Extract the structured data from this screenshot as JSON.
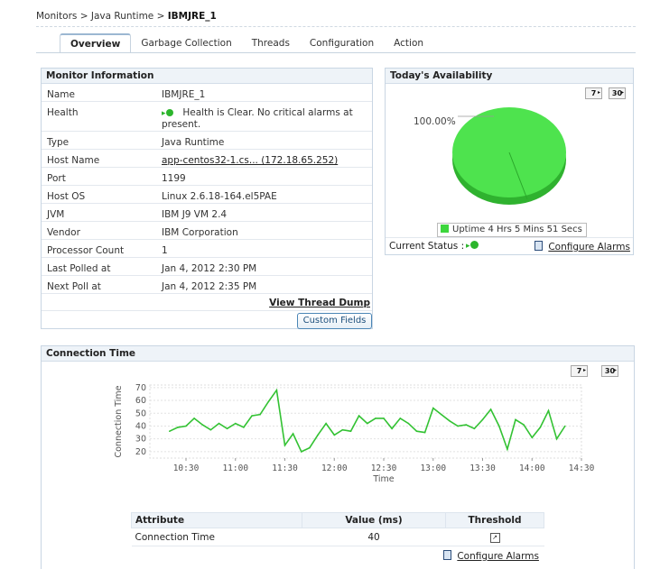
{
  "breadcrumb": {
    "part1": "Monitors",
    "sep": ">",
    "part2": "Java Runtime",
    "current": "IBMJRE_1"
  },
  "tabs": [
    "Overview",
    "Garbage Collection",
    "Threads",
    "Configuration",
    "Action"
  ],
  "monitor_info": {
    "title": "Monitor Information",
    "rows": [
      {
        "key": "Name",
        "value": "IBMJRE_1"
      },
      {
        "key": "Health",
        "value": "Health is Clear. No critical alarms at present."
      },
      {
        "key": "Type",
        "value": "Java Runtime"
      },
      {
        "key": "Host Name",
        "value": "app-centos32-1.cs... (172.18.65.252)"
      },
      {
        "key": "Port",
        "value": "1199"
      },
      {
        "key": "Host OS",
        "value": "Linux 2.6.18-164.el5PAE"
      },
      {
        "key": "JVM",
        "value": "IBM J9 VM 2.4"
      },
      {
        "key": "Vendor",
        "value": "IBM Corporation"
      },
      {
        "key": "Processor Count",
        "value": "1"
      },
      {
        "key": "Last Polled at",
        "value": "Jan 4, 2012 2:30 PM"
      },
      {
        "key": "Next Poll at",
        "value": "Jan 4, 2012 2:35 PM"
      }
    ],
    "view_thread_dump": "View Thread Dump",
    "custom_fields": "Custom Fields"
  },
  "availability": {
    "title": "Today's Availability",
    "btn_7": "7",
    "btn_30": "30",
    "pie_label": "100.00%",
    "uptime_percent": 100,
    "legend": "Uptime 4 Hrs 5 Mins 51 Secs",
    "current_status_label": "Current Status :",
    "configure_alarms": "Configure Alarms",
    "color": "#3dd63d"
  },
  "connection_time": {
    "title": "Connection Time",
    "btn_7": "7",
    "btn_30": "30",
    "table": {
      "headers": [
        "Attribute",
        "Value (ms)",
        "Threshold"
      ],
      "rows": [
        {
          "attribute": "Connection Time",
          "value": "40"
        }
      ]
    },
    "configure_alarms": "Configure Alarms"
  },
  "chart_data": {
    "type": "line",
    "title": "",
    "xlabel": "Time",
    "ylabel": "Connection Time",
    "ylim": [
      15,
      72
    ],
    "yticks": [
      20,
      30,
      40,
      50,
      60,
      70
    ],
    "xticks": [
      "10:30",
      "11:00",
      "11:30",
      "12:00",
      "12:30",
      "13:00",
      "13:30",
      "14:00",
      "14:30"
    ],
    "color": "#33c233",
    "series": [
      {
        "points": [
          [
            "10:20",
            36
          ],
          [
            "10:25",
            39
          ],
          [
            "10:30",
            40
          ],
          [
            "10:35",
            46
          ],
          [
            "10:40",
            41
          ],
          [
            "10:45",
            37
          ],
          [
            "10:50",
            42
          ],
          [
            "10:55",
            38
          ],
          [
            "11:00",
            42
          ],
          [
            "11:05",
            39
          ],
          [
            "11:10",
            48
          ],
          [
            "11:15",
            49
          ],
          [
            "11:20",
            59
          ],
          [
            "11:25",
            68
          ],
          [
            "11:30",
            25
          ],
          [
            "11:35",
            34
          ],
          [
            "11:40",
            20
          ],
          [
            "11:45",
            23
          ],
          [
            "11:50",
            33
          ],
          [
            "11:55",
            42
          ],
          [
            "12:00",
            33
          ],
          [
            "12:05",
            37
          ],
          [
            "12:10",
            36
          ],
          [
            "12:15",
            48
          ],
          [
            "12:20",
            42
          ],
          [
            "12:25",
            46
          ],
          [
            "12:30",
            46
          ],
          [
            "12:35",
            38
          ],
          [
            "12:40",
            46
          ],
          [
            "12:45",
            42
          ],
          [
            "12:50",
            36
          ],
          [
            "12:55",
            35
          ],
          [
            "13:00",
            54
          ],
          [
            "13:05",
            49
          ],
          [
            "13:10",
            44
          ],
          [
            "13:15",
            40
          ],
          [
            "13:20",
            41
          ],
          [
            "13:25",
            38
          ],
          [
            "13:30",
            45
          ],
          [
            "13:35",
            53
          ],
          [
            "13:40",
            40
          ],
          [
            "13:45",
            22
          ],
          [
            "13:50",
            45
          ],
          [
            "13:55",
            41
          ],
          [
            "14:00",
            31
          ],
          [
            "14:05",
            39
          ],
          [
            "14:10",
            52
          ],
          [
            "14:15",
            30
          ],
          [
            "14:20",
            40
          ]
        ]
      }
    ]
  }
}
